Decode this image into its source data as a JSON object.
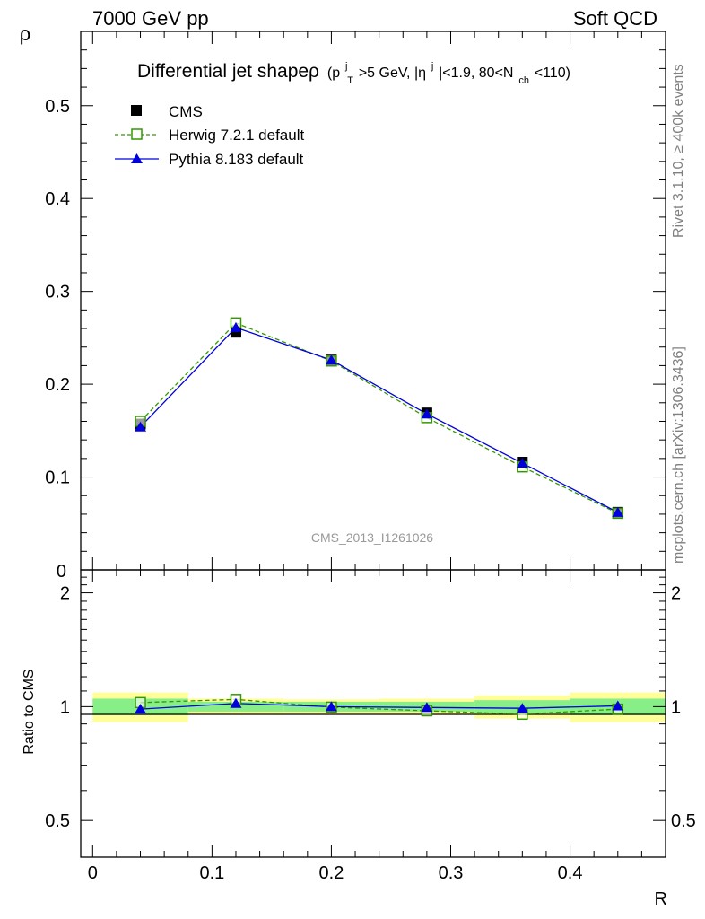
{
  "header": {
    "energy_label": "7000 GeV pp",
    "process_label": "Soft QCD"
  },
  "side_labels": {
    "rivet": "Rivet 3.1.10, ≥ 400k events",
    "mcplots": "mcplots.cern.ch [arXiv:1306.3436]"
  },
  "chart_data": [
    {
      "type": "scatter",
      "panel": "main",
      "title_main": "Differential jet shapeρ",
      "title_sub": {
        "p": "(p",
        "pt_sup": "j",
        "pt_sub": "T",
        "pt_cut": ">5 GeV, |η",
        "eta_sup": "j",
        "eta_cut": "|<1.9, 80<N",
        "nch_sub": "ch",
        "nch_cut": "<110)"
      },
      "xlabel": "R",
      "ylabel": "ρ",
      "xlim": [
        -0.01,
        0.48
      ],
      "ylim": [
        0,
        0.58
      ],
      "yticks": [
        {
          "v": 0.1,
          "label": "0.1"
        },
        {
          "v": 0.2,
          "label": "0.2"
        },
        {
          "v": 0.3,
          "label": "0.3"
        },
        {
          "v": 0.4,
          "label": "0.4"
        },
        {
          "v": 0.5,
          "label": "0.5"
        }
      ],
      "y_zero_label": "0",
      "watermark": "CMS_2013_I1261026",
      "legend_position": "top-left",
      "x": [
        0.04,
        0.12,
        0.2,
        0.28,
        0.36,
        0.44
      ],
      "series": [
        {
          "name": "CMS",
          "values": [
            0.157,
            0.256,
            0.226,
            0.169,
            0.116,
            0.062
          ],
          "color": "#000000",
          "marker": "filled-square",
          "line": "none"
        },
        {
          "name": "Herwig 7.2.1 default",
          "values": [
            0.16,
            0.266,
            0.225,
            0.164,
            0.111,
            0.061
          ],
          "color": "#339900",
          "marker": "open-square",
          "line": "dashed"
        },
        {
          "name": "Pythia 8.183 default",
          "values": [
            0.154,
            0.261,
            0.226,
            0.168,
            0.115,
            0.062
          ],
          "color": "#0000dd",
          "marker": "filled-triangle",
          "line": "solid"
        }
      ]
    },
    {
      "type": "scatter",
      "panel": "ratio",
      "xlabel": "R",
      "ylabel": "Ratio to CMS",
      "ylim": [
        0.4,
        2.3
      ],
      "yscale": "log",
      "yticks": [
        {
          "v": 0.5,
          "label": "0.5"
        },
        {
          "v": 1,
          "label": "1"
        },
        {
          "v": 2,
          "label": "2"
        }
      ],
      "xticks": [
        {
          "v": 0,
          "label": "0"
        },
        {
          "v": 0.1,
          "label": "0.1"
        },
        {
          "v": 0.2,
          "label": "0.2"
        },
        {
          "v": 0.3,
          "label": "0.3"
        },
        {
          "v": 0.4,
          "label": "0.4"
        }
      ],
      "bands": [
        {
          "x0": 0.0,
          "x1": 0.08,
          "stat": 0.05,
          "total": 0.09
        },
        {
          "x0": 0.08,
          "x1": 0.16,
          "stat": 0.03,
          "total": 0.05
        },
        {
          "x0": 0.16,
          "x1": 0.24,
          "stat": 0.03,
          "total": 0.045
        },
        {
          "x0": 0.24,
          "x1": 0.32,
          "stat": 0.03,
          "total": 0.05
        },
        {
          "x0": 0.32,
          "x1": 0.4,
          "stat": 0.04,
          "total": 0.07
        },
        {
          "x0": 0.4,
          "x1": 0.48,
          "stat": 0.05,
          "total": 0.09
        }
      ],
      "band_colors": {
        "stat": "#88ee88",
        "total": "#ffff99"
      },
      "x": [
        0.04,
        0.12,
        0.2,
        0.28,
        0.36,
        0.44
      ],
      "series": [
        {
          "name": "Herwig 7.2.1 default",
          "values": [
            1.025,
            1.045,
            0.997,
            0.975,
            0.955,
            0.985
          ],
          "color": "#339900",
          "marker": "open-square",
          "line": "dashed"
        },
        {
          "name": "Pythia 8.183 default",
          "values": [
            0.985,
            1.02,
            1.0,
            0.995,
            0.99,
            1.005
          ],
          "color": "#0000dd",
          "marker": "filled-triangle",
          "line": "solid"
        }
      ]
    }
  ]
}
